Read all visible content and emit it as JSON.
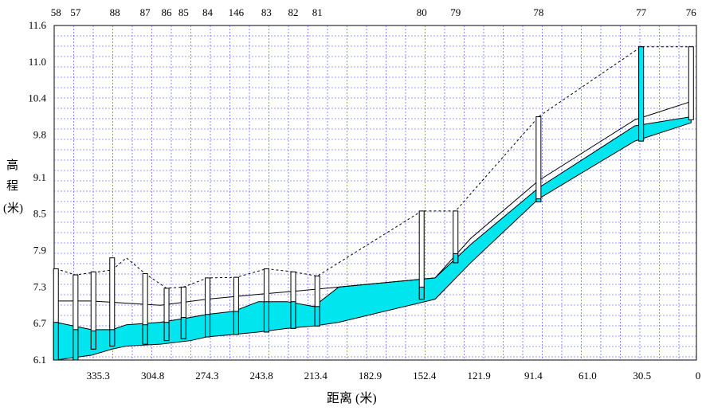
{
  "chart_data": {
    "type": "profile",
    "xlabel": "距离 (米)",
    "ylabel_chars": [
      "高",
      "程",
      "(米)"
    ],
    "ylim": [
      6.1,
      11.6
    ],
    "xlim": [
      0,
      360
    ],
    "x_reversed": true,
    "yticks": [
      "6.1",
      "6.7",
      "7.3",
      "7.9",
      "8.5",
      "9.1",
      "9.8",
      "10.4",
      "11.0",
      "11.6"
    ],
    "xticks": [
      "335.3",
      "304.8",
      "274.3",
      "243.8",
      "213.4",
      "182.9",
      "152.4",
      "121.9",
      "91.4",
      "61.0",
      "30.5",
      "0"
    ],
    "grid": true,
    "colors": {
      "pipe_fill": "#00e5ee",
      "grid": "#3c3cff",
      "line": "#000000",
      "ground": "#000000"
    },
    "manholes": [
      {
        "id": "58",
        "distance": 359.0,
        "ground": 7.6,
        "bottom": 6.1
      },
      {
        "id": "57",
        "distance": 339.0,
        "ground": 7.5,
        "bottom": 6.1
      },
      {
        "id": "88",
        "distance": 327.5,
        "ground": 7.55,
        "bottom": 6.25
      },
      {
        "id": "87",
        "distance": 319.5,
        "ground": 7.75,
        "bottom": 6.3
      },
      {
        "id": "86",
        "distance": 300.5,
        "ground": 7.5,
        "bottom": 6.3
      },
      {
        "id": "85",
        "distance": 283.5,
        "ground": 7.25,
        "bottom": 6.38
      },
      {
        "id": "84",
        "distance": 274.5,
        "ground": 7.3,
        "bottom": 6.45
      },
      {
        "id": "146",
        "distance": 259.5,
        "ground": 7.45,
        "bottom": 6.5
      },
      {
        "id": "83",
        "distance": 245.5,
        "ground": 7.45,
        "bottom": 6.5
      },
      {
        "id": "82",
        "distance": 229.5,
        "ground": 7.6,
        "bottom": 6.6
      },
      {
        "id": "81",
        "distance": 214.5,
        "ground": 7.55,
        "bottom": 6.6
      },
      {
        "id": "80",
        "distance": 200.5,
        "ground": 7.45,
        "bottom": 6.7
      },
      {
        "id": "79",
        "distance": 146.5,
        "ground": 8.55,
        "bottom": 7.1
      },
      {
        "id": "78",
        "distance": 126.5,
        "ground": 8.55,
        "bottom": 7.7
      },
      {
        "id": "77",
        "distance": 88.5,
        "ground": 10.05,
        "bottom": 8.7
      },
      {
        "id": "76",
        "distance": 34.5,
        "ground": 11.25,
        "bottom": 9.75
      }
    ],
    "label_points": [
      {
        "id": "58",
        "distance": 359.0
      },
      {
        "id": "57",
        "distance": 348.0
      },
      {
        "id": "88",
        "distance": 326.0
      },
      {
        "id": "87",
        "distance": 309.0
      },
      {
        "id": "86",
        "distance": 297.0
      },
      {
        "id": "85",
        "distance": 287.5
      },
      {
        "id": "84",
        "distance": 274.0
      },
      {
        "id": "146",
        "distance": 258.0
      },
      {
        "id": "83",
        "distance": 241.0
      },
      {
        "id": "82",
        "distance": 226.0
      },
      {
        "id": "81",
        "distance": 212.5
      },
      {
        "id": "80",
        "distance": 154.0
      },
      {
        "id": "79",
        "distance": 135.0
      },
      {
        "id": "78",
        "distance": 88.5
      },
      {
        "id": "77",
        "distance": 31.0
      },
      {
        "id": "76",
        "distance": 3.0
      }
    ],
    "pipe_invert": [
      {
        "distance": 359.0,
        "y": 6.1
      },
      {
        "distance": 339.0,
        "y": 6.18
      },
      {
        "distance": 327.5,
        "y": 6.28
      },
      {
        "distance": 319.5,
        "y": 6.33
      },
      {
        "distance": 300.5,
        "y": 6.36
      },
      {
        "distance": 283.5,
        "y": 6.42
      },
      {
        "distance": 274.5,
        "y": 6.48
      },
      {
        "distance": 259.5,
        "y": 6.52
      },
      {
        "distance": 245.5,
        "y": 6.56
      },
      {
        "distance": 229.5,
        "y": 6.62
      },
      {
        "distance": 214.5,
        "y": 6.66
      },
      {
        "distance": 200.5,
        "y": 6.72
      },
      {
        "distance": 146.5,
        "y": 7.1
      },
      {
        "distance": 126.5,
        "y": 7.7
      },
      {
        "distance": 88.5,
        "y": 8.75
      },
      {
        "distance": 34.5,
        "y": 9.7
      },
      {
        "distance": 3.0,
        "y": 10.0
      }
    ],
    "pipe_crown": [
      {
        "distance": 359.0,
        "y": 6.72
      },
      {
        "distance": 339.0,
        "y": 6.6
      },
      {
        "distance": 327.5,
        "y": 6.6
      },
      {
        "distance": 319.5,
        "y": 6.68
      },
      {
        "distance": 300.5,
        "y": 6.72
      },
      {
        "distance": 283.5,
        "y": 6.8
      },
      {
        "distance": 274.5,
        "y": 6.85
      },
      {
        "distance": 259.5,
        "y": 6.9
      },
      {
        "distance": 245.5,
        "y": 7.06
      },
      {
        "distance": 229.5,
        "y": 7.06
      },
      {
        "distance": 214.5,
        "y": 6.98
      },
      {
        "distance": 200.5,
        "y": 7.3
      },
      {
        "distance": 146.5,
        "y": 7.45
      },
      {
        "distance": 126.5,
        "y": 8.0
      },
      {
        "distance": 88.5,
        "y": 8.93
      },
      {
        "distance": 34.5,
        "y": 9.95
      },
      {
        "distance": 3.0,
        "y": 10.1
      }
    ],
    "water_line": [
      {
        "distance": 359.0,
        "y": 7.07
      },
      {
        "distance": 339.0,
        "y": 7.07
      },
      {
        "distance": 300.5,
        "y": 7.0
      },
      {
        "distance": 274.5,
        "y": 7.1
      },
      {
        "distance": 245.5,
        "y": 7.18
      },
      {
        "distance": 214.5,
        "y": 7.26
      },
      {
        "distance": 200.5,
        "y": 7.3
      },
      {
        "distance": 146.5,
        "y": 7.45
      },
      {
        "distance": 126.5,
        "y": 8.1
      },
      {
        "distance": 88.5,
        "y": 9.05
      },
      {
        "distance": 34.5,
        "y": 10.05
      },
      {
        "distance": 3.0,
        "y": 10.35
      }
    ],
    "ground_profile": [
      {
        "distance": 359.0,
        "y": 7.6
      },
      {
        "distance": 348.0,
        "y": 7.5
      },
      {
        "distance": 327.5,
        "y": 7.58
      },
      {
        "distance": 319.5,
        "y": 7.78
      },
      {
        "distance": 309.0,
        "y": 7.52
      },
      {
        "distance": 297.0,
        "y": 7.28
      },
      {
        "distance": 287.5,
        "y": 7.3
      },
      {
        "distance": 274.0,
        "y": 7.45
      },
      {
        "distance": 258.0,
        "y": 7.46
      },
      {
        "distance": 241.0,
        "y": 7.6
      },
      {
        "distance": 226.0,
        "y": 7.55
      },
      {
        "distance": 212.5,
        "y": 7.48
      },
      {
        "distance": 154.0,
        "y": 8.55
      },
      {
        "distance": 135.0,
        "y": 8.55
      },
      {
        "distance": 88.5,
        "y": 10.1
      },
      {
        "distance": 31.0,
        "y": 11.25
      },
      {
        "distance": 3.0,
        "y": 11.25
      }
    ],
    "shafts": [
      {
        "id": "58",
        "distance": 359.0,
        "top": 7.6,
        "bottom": 6.1,
        "filled_bottom": 6.72
      },
      {
        "id": "57",
        "distance": 348.0,
        "top": 7.5,
        "bottom": 6.1,
        "filled_bottom": 6.6
      },
      {
        "id": "88",
        "distance": 338.0,
        "top": 7.55,
        "bottom": 6.28,
        "filled_bottom": 6.58
      },
      {
        "id": "87",
        "distance": 327.5,
        "top": 7.78,
        "bottom": 6.33,
        "filled_bottom": 6.6
      },
      {
        "id": "86",
        "distance": 309.0,
        "top": 7.52,
        "bottom": 6.36,
        "filled_bottom": 6.68
      },
      {
        "id": "85",
        "distance": 297.0,
        "top": 7.28,
        "bottom": 6.42,
        "filled_bottom": 6.72
      },
      {
        "id": "84",
        "distance": 287.5,
        "top": 7.3,
        "bottom": 6.45,
        "filled_bottom": 6.8
      },
      {
        "id": "146",
        "distance": 274.0,
        "top": 7.45,
        "bottom": 6.48,
        "filled_bottom": 6.85
      },
      {
        "id": "83",
        "distance": 258.0,
        "top": 7.46,
        "bottom": 6.52,
        "filled_bottom": 6.9
      },
      {
        "id": "82",
        "distance": 241.0,
        "top": 7.6,
        "bottom": 6.56,
        "filled_bottom": 7.06
      },
      {
        "id": "81",
        "distance": 226.0,
        "top": 7.55,
        "bottom": 6.62,
        "filled_bottom": 7.06
      },
      {
        "id": "81b",
        "distance": 212.5,
        "top": 7.48,
        "bottom": 6.66,
        "filled_bottom": 6.98
      },
      {
        "id": "80",
        "distance": 154.0,
        "top": 8.55,
        "bottom": 7.1,
        "filled_bottom": 7.3
      },
      {
        "id": "79",
        "distance": 135.0,
        "top": 8.55,
        "bottom": 7.7,
        "filled_bottom": 7.85
      },
      {
        "id": "78",
        "distance": 88.5,
        "top": 10.1,
        "bottom": 8.7,
        "filled_bottom": 8.75
      },
      {
        "id": "77",
        "distance": 31.0,
        "top": 11.25,
        "bottom": 9.7,
        "filled_bottom": 11.25
      },
      {
        "id": "76",
        "distance": 3.0,
        "top": 11.25,
        "bottom": 10.05,
        "filled_bottom": 10.05
      }
    ]
  }
}
